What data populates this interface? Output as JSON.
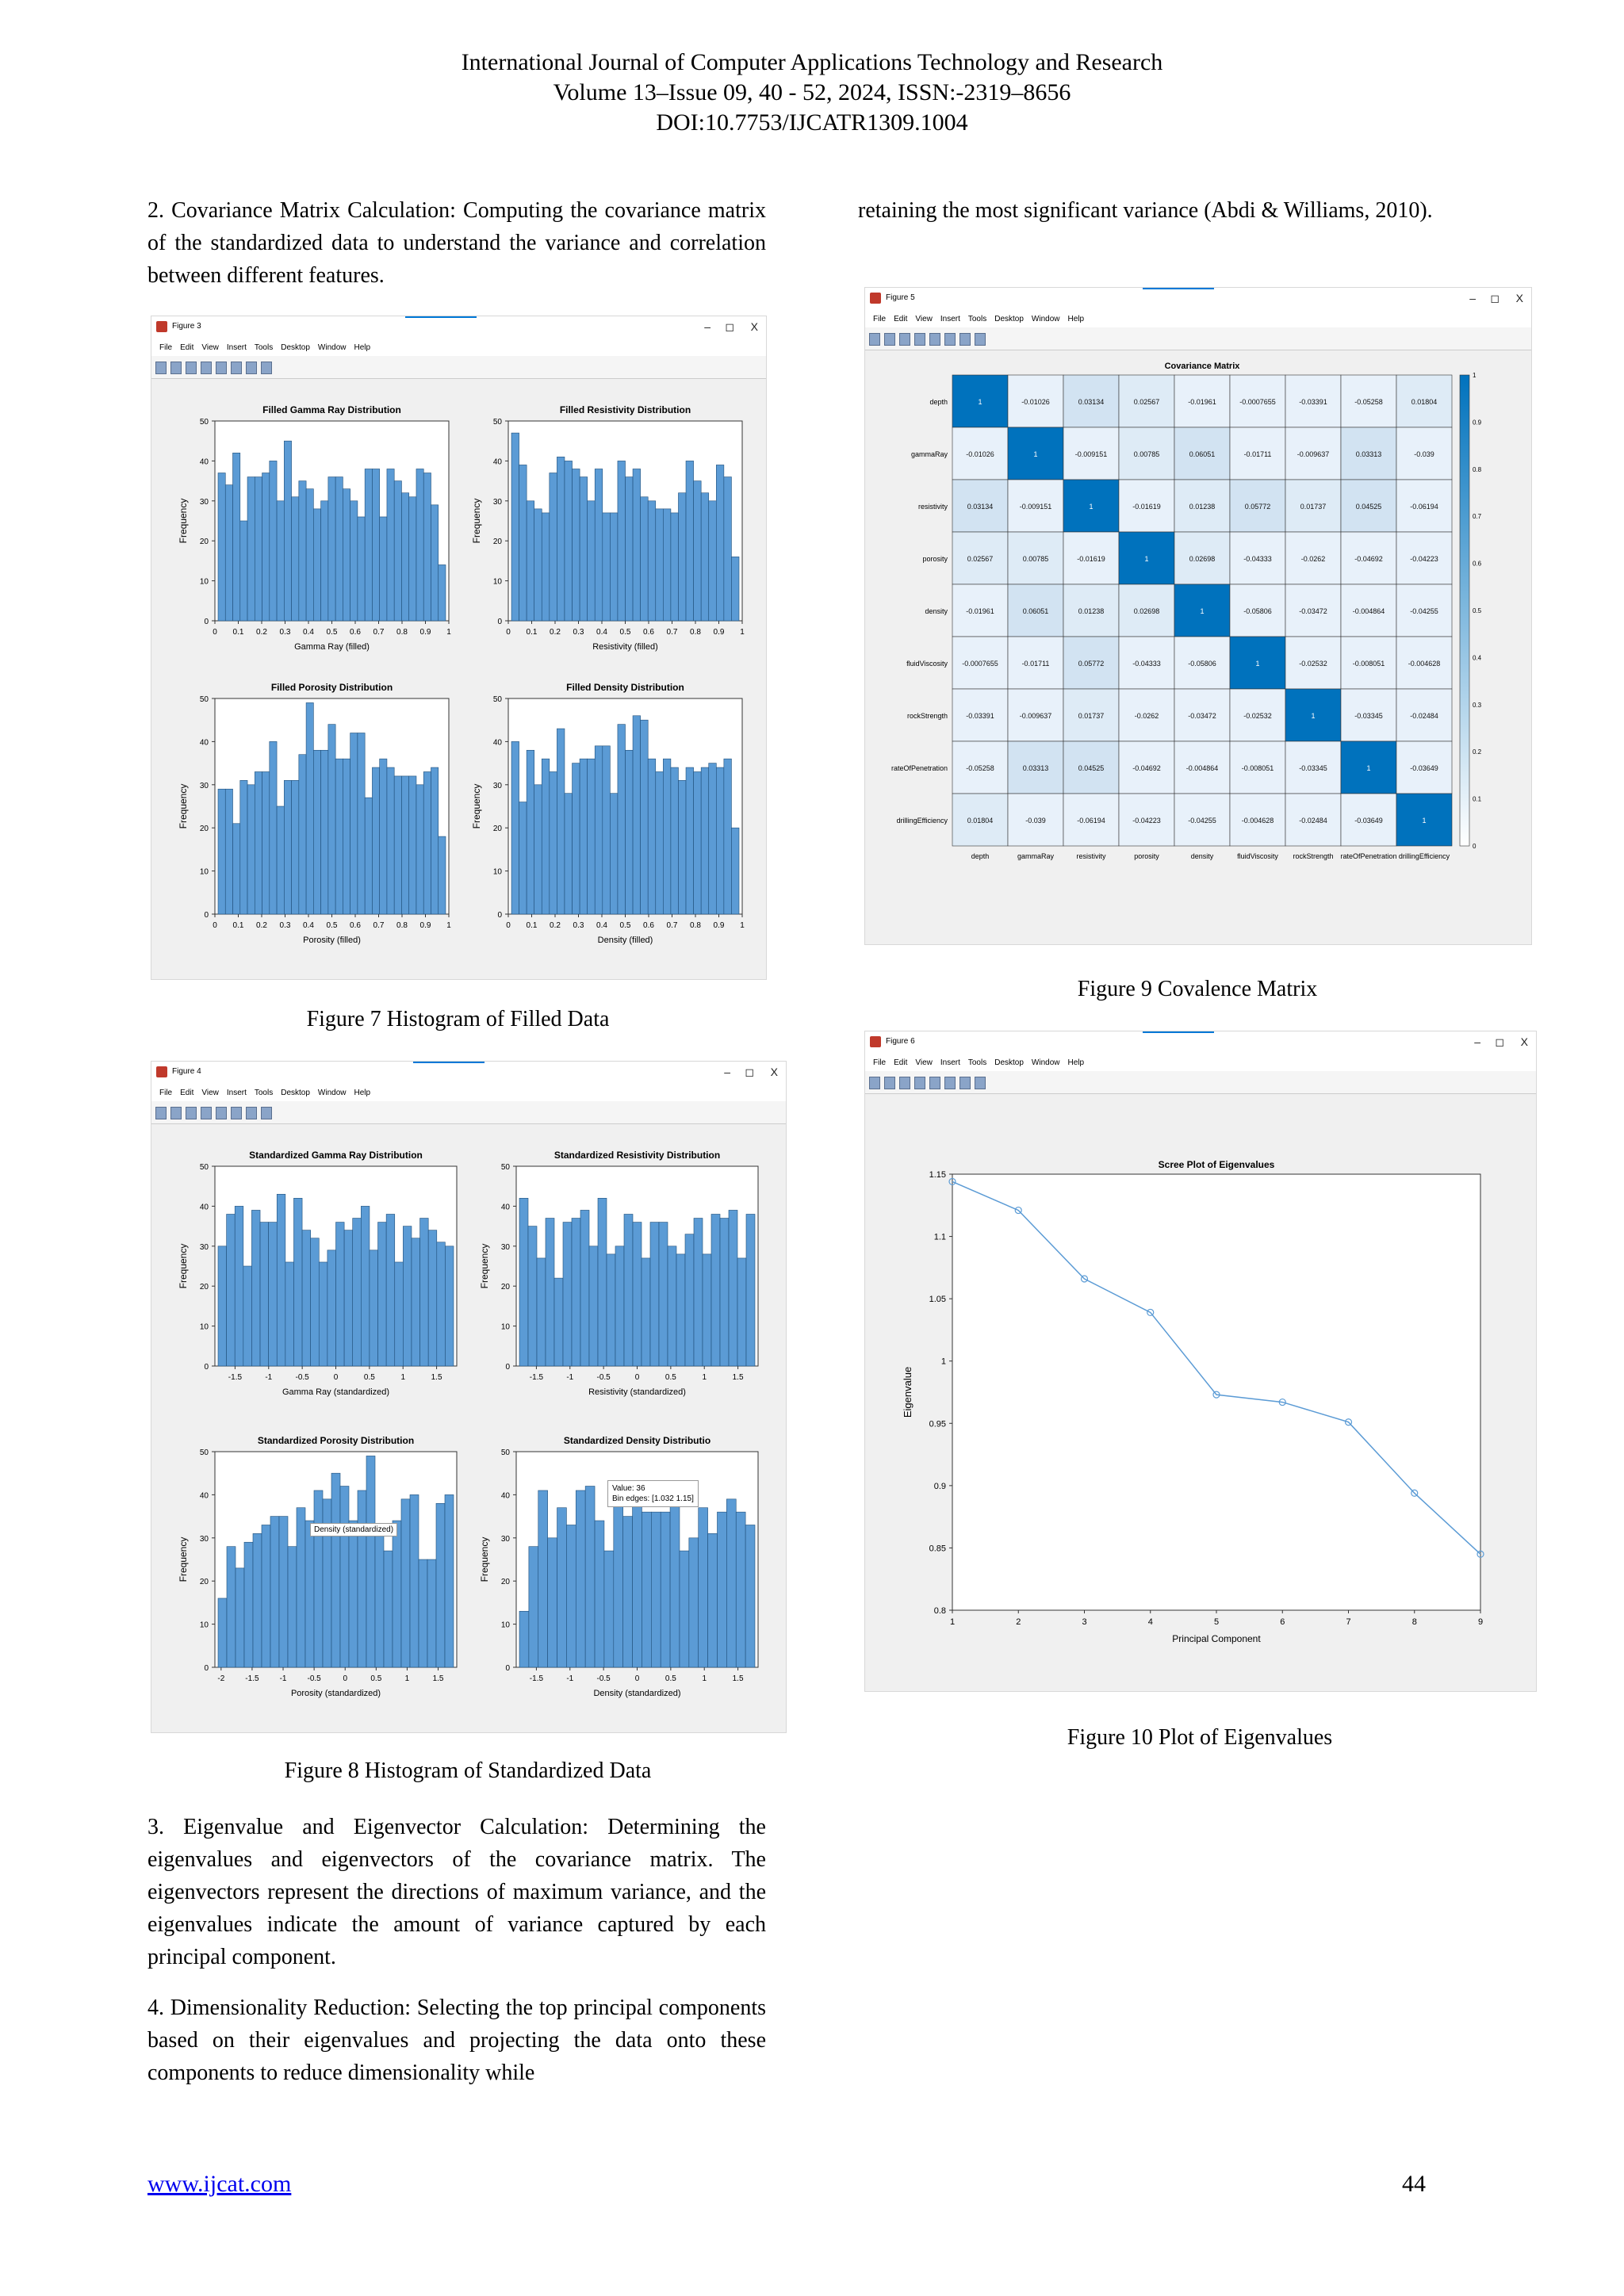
{
  "header": {
    "line1": "International Journal of Computer Applications Technology and Research",
    "line2": "Volume 13–Issue 09, 40 - 52, 2024, ISSN:-2319–8656",
    "line3": "DOI:10.7753/IJCATR1309.1004"
  },
  "text": {
    "para_cov": "2. Covariance Matrix Calculation: Computing the covariance matrix of the standardized data to understand the variance and correlation between different features.",
    "para_retain": "retaining the most significant variance (Abdi & Williams, 2010).",
    "para_eig": "3. Eigenvalue and Eigenvector Calculation: Determining the eigenvalues and eigenvectors of the covariance matrix. The eigenvectors represent the directions of maximum variance, and the eigenvalues indicate the amount of variance captured by each principal component.",
    "para_dim": "4. Dimensionality Reduction: Selecting the top principal components based on their eigenvalues and projecting the data onto these components to reduce dimensionality while"
  },
  "captions": {
    "fig7": "Figure 7 Histogram of Filled Data",
    "fig8": "Figure 8 Histogram of Standardized Data",
    "fig9": "Figure 9 Covalence Matrix",
    "fig10": "Figure 10 Plot of Eigenvalues"
  },
  "windows": {
    "fig3": "Figure 3",
    "fig4": "Figure 4",
    "fig5": "Figure 5",
    "fig6": "Figure 6",
    "menu": [
      "File",
      "Edit",
      "View",
      "Insert",
      "Tools",
      "Desktop",
      "Window",
      "Help"
    ],
    "controls": [
      "–",
      "◻",
      "X"
    ]
  },
  "footer": {
    "url": "www.ijcat.com",
    "page": "44"
  },
  "colors": {
    "bar": "#5b9bd5",
    "bar_edge": "#1f4e79",
    "line": "#5b9bd5",
    "heat_max": "#0072bd"
  },
  "chart_data": [
    {
      "id": "filled_gamma",
      "type": "bar",
      "title": "Filled Gamma Ray Distribution",
      "xlabel": "Gamma Ray (filled)",
      "ylabel": "Frequency",
      "xlim": [
        0,
        1
      ],
      "ylim": [
        0,
        50
      ],
      "xticks": [
        "0",
        "0.1",
        "0.2",
        "0.3",
        "0.4",
        "0.5",
        "0.6",
        "0.7",
        "0.8",
        "0.9",
        "1"
      ],
      "yticks": [
        "0",
        "10",
        "20",
        "30",
        "40",
        "50"
      ],
      "values": [
        37,
        34,
        42,
        25,
        36,
        36,
        37,
        40,
        30,
        45,
        31,
        35,
        33,
        28,
        30,
        36,
        36,
        33,
        30,
        26,
        38,
        38,
        26,
        38,
        35,
        32,
        31,
        38,
        37,
        29,
        14
      ]
    },
    {
      "id": "filled_resistivity",
      "type": "bar",
      "title": "Filled Resistivity Distribution",
      "xlabel": "Resistivity (filled)",
      "ylabel": "Frequency",
      "xlim": [
        0,
        1
      ],
      "ylim": [
        0,
        50
      ],
      "xticks": [
        "0",
        "0.1",
        "0.2",
        "0.3",
        "0.4",
        "0.5",
        "0.6",
        "0.7",
        "0.8",
        "0.9",
        "1"
      ],
      "yticks": [
        "0",
        "10",
        "20",
        "30",
        "40",
        "50"
      ],
      "values": [
        47,
        39,
        30,
        28,
        27,
        37,
        41,
        40,
        38,
        36,
        30,
        38,
        27,
        27,
        40,
        36,
        38,
        31,
        30,
        28,
        28,
        27,
        32,
        40,
        35,
        32,
        30,
        39,
        36,
        16
      ]
    },
    {
      "id": "filled_porosity",
      "type": "bar",
      "title": "Filled Porosity Distribution",
      "xlabel": "Porosity (filled)",
      "ylabel": "Frequency",
      "xlim": [
        0,
        1
      ],
      "ylim": [
        0,
        50
      ],
      "xticks": [
        "0",
        "0.1",
        "0.2",
        "0.3",
        "0.4",
        "0.5",
        "0.6",
        "0.7",
        "0.8",
        "0.9",
        "1"
      ],
      "yticks": [
        "0",
        "10",
        "20",
        "30",
        "40",
        "50"
      ],
      "values": [
        29,
        29,
        21,
        31,
        30,
        33,
        33,
        40,
        25,
        31,
        31,
        37,
        49,
        38,
        38,
        44,
        36,
        36,
        42,
        42,
        27,
        34,
        36,
        34,
        32,
        32,
        32,
        30,
        33,
        34,
        18
      ]
    },
    {
      "id": "filled_density",
      "type": "bar",
      "title": "Filled Density Distribution",
      "xlabel": "Density (filled)",
      "ylabel": "Frequency",
      "xlim": [
        0,
        1
      ],
      "ylim": [
        0,
        50
      ],
      "xticks": [
        "0",
        "0.1",
        "0.2",
        "0.3",
        "0.4",
        "0.5",
        "0.6",
        "0.7",
        "0.8",
        "0.9",
        "1"
      ],
      "yticks": [
        "0",
        "10",
        "20",
        "30",
        "40",
        "50"
      ],
      "values": [
        40,
        26,
        38,
        30,
        36,
        33,
        43,
        28,
        35,
        36,
        36,
        39,
        39,
        28,
        44,
        38,
        46,
        45,
        36,
        33,
        36,
        34,
        31,
        34,
        33,
        34,
        35,
        34,
        36,
        20
      ]
    },
    {
      "id": "std_gamma",
      "type": "bar",
      "title": "Standardized Gamma Ray Distribution",
      "xlabel": "Gamma Ray (standardized)",
      "ylabel": "Frequency",
      "xlim": [
        -1.8,
        1.8
      ],
      "ylim": [
        0,
        50
      ],
      "xticks": [
        "-1.5",
        "-1",
        "-0.5",
        "0",
        "0.5",
        "1",
        "1.5"
      ],
      "yticks": [
        "0",
        "10",
        "20",
        "30",
        "40",
        "50"
      ],
      "values": [
        30,
        38,
        40,
        25,
        39,
        36,
        36,
        43,
        26,
        42,
        34,
        32,
        26,
        29,
        36,
        34,
        37,
        40,
        29,
        36,
        38,
        26,
        35,
        32,
        37,
        34,
        31,
        30
      ]
    },
    {
      "id": "std_resistivity",
      "type": "bar",
      "title": "Standardized Resistivity Distribution",
      "xlabel": "Resistivity (standardized)",
      "ylabel": "Frequency",
      "xlim": [
        -1.8,
        1.8
      ],
      "ylim": [
        0,
        50
      ],
      "xticks": [
        "-1.5",
        "-1",
        "-0.5",
        "0",
        "0.5",
        "1",
        "1.5"
      ],
      "yticks": [
        "0",
        "10",
        "20",
        "30",
        "40",
        "50"
      ],
      "values": [
        42,
        35,
        27,
        37,
        22,
        36,
        37,
        39,
        30,
        42,
        28,
        30,
        38,
        36,
        27,
        36,
        36,
        30,
        28,
        33,
        37,
        28,
        38,
        37,
        39,
        27,
        38
      ]
    },
    {
      "id": "std_porosity",
      "type": "bar",
      "title": "Standardized Porosity Distribution",
      "xlabel": "Porosity (standardized)",
      "ylabel": "Frequency",
      "xlim": [
        -2.1,
        1.8
      ],
      "ylim": [
        0,
        50
      ],
      "xticks": [
        "-2",
        "-1.5",
        "-1",
        "-0.5",
        "0",
        "0.5",
        "1",
        "1.5"
      ],
      "yticks": [
        "0",
        "10",
        "20",
        "30",
        "40",
        "50"
      ],
      "values": [
        16,
        28,
        23,
        29,
        31,
        33,
        35,
        35,
        28,
        37,
        34,
        41,
        39,
        45,
        42,
        34,
        41,
        49,
        33,
        27,
        34,
        39,
        40,
        25,
        25,
        38,
        40
      ]
    },
    {
      "id": "std_density",
      "type": "bar",
      "title": "Standardized Density Distributio",
      "xlabel": "Density (standardized)",
      "ylabel": "Frequency",
      "xlim": [
        -1.8,
        1.8
      ],
      "ylim": [
        0,
        50
      ],
      "xticks": [
        "-1.5",
        "-1",
        "-0.5",
        "0",
        "0.5",
        "1",
        "1.5"
      ],
      "yticks": [
        "0",
        "10",
        "20",
        "30",
        "40",
        "50"
      ],
      "values": [
        13,
        28,
        41,
        30,
        37,
        33,
        41,
        42,
        34,
        27,
        38,
        35,
        41,
        36,
        36,
        36,
        41,
        27,
        30,
        37,
        31,
        36,
        39,
        36,
        33
      ]
    },
    {
      "id": "covariance",
      "type": "heatmap",
      "title": "Covariance Matrix",
      "labels": [
        "depth",
        "gammaRay",
        "resistivity",
        "porosity",
        "density",
        "fluidViscosity",
        "rockStrength",
        "rateOfPenetration",
        "drillingEfficiency"
      ],
      "values": [
        [
          "1",
          "-0.01026",
          "0.03134",
          "0.02567",
          "-0.01961",
          "-0.0007655",
          "-0.03391",
          "-0.05258",
          "0.01804"
        ],
        [
          "-0.01026",
          "1",
          "-0.009151",
          "0.00785",
          "0.06051",
          "-0.01711",
          "-0.009637",
          "0.03313",
          "-0.039"
        ],
        [
          "0.03134",
          "-0.009151",
          "1",
          "-0.01619",
          "0.01238",
          "0.05772",
          "0.01737",
          "0.04525",
          "-0.06194"
        ],
        [
          "0.02567",
          "0.00785",
          "-0.01619",
          "1",
          "0.02698",
          "-0.04333",
          "-0.0262",
          "-0.04692",
          "-0.04223"
        ],
        [
          "-0.01961",
          "0.06051",
          "0.01238",
          "0.02698",
          "1",
          "-0.05806",
          "-0.03472",
          "-0.004864",
          "-0.04255"
        ],
        [
          "-0.0007655",
          "-0.01711",
          "0.05772",
          "-0.04333",
          "-0.05806",
          "1",
          "-0.02532",
          "-0.008051",
          "-0.004628"
        ],
        [
          "-0.03391",
          "-0.009637",
          "0.01737",
          "-0.0262",
          "-0.03472",
          "-0.02532",
          "1",
          "-0.03345",
          "-0.02484"
        ],
        [
          "-0.05258",
          "0.03313",
          "0.04525",
          "-0.04692",
          "-0.004864",
          "-0.008051",
          "-0.03345",
          "1",
          "-0.03649"
        ],
        [
          "0.01804",
          "-0.039",
          "-0.06194",
          "-0.04223",
          "-0.04255",
          "-0.004628",
          "-0.02484",
          "-0.03649",
          "1"
        ]
      ],
      "colorbar_ticks": [
        "0",
        "0.1",
        "0.2",
        "0.3",
        "0.4",
        "0.5",
        "0.6",
        "0.7",
        "0.8",
        "0.9",
        "1"
      ]
    },
    {
      "id": "scree",
      "type": "line",
      "title": "Scree Plot of Eigenvalues",
      "xlabel": "Principal Component",
      "ylabel": "Eigenvalue",
      "x": [
        1,
        2,
        3,
        4,
        5,
        6,
        7,
        8,
        9
      ],
      "y": [
        1.144,
        1.121,
        1.066,
        1.039,
        0.973,
        0.967,
        0.951,
        0.894,
        0.845
      ],
      "xlim": [
        1,
        9
      ],
      "ylim": [
        0.8,
        1.15
      ],
      "xticks": [
        "1",
        "2",
        "3",
        "4",
        "5",
        "6",
        "7",
        "8",
        "9"
      ],
      "yticks": [
        "0.8",
        "0.85",
        "0.9",
        "0.95",
        "1",
        "1.05",
        "1.1",
        "1.15"
      ]
    }
  ],
  "tooltip": {
    "line1": "Value: 36",
    "line2": "Bin edges: [1.032 1.15]",
    "axis_label": "Density (standardized)"
  }
}
